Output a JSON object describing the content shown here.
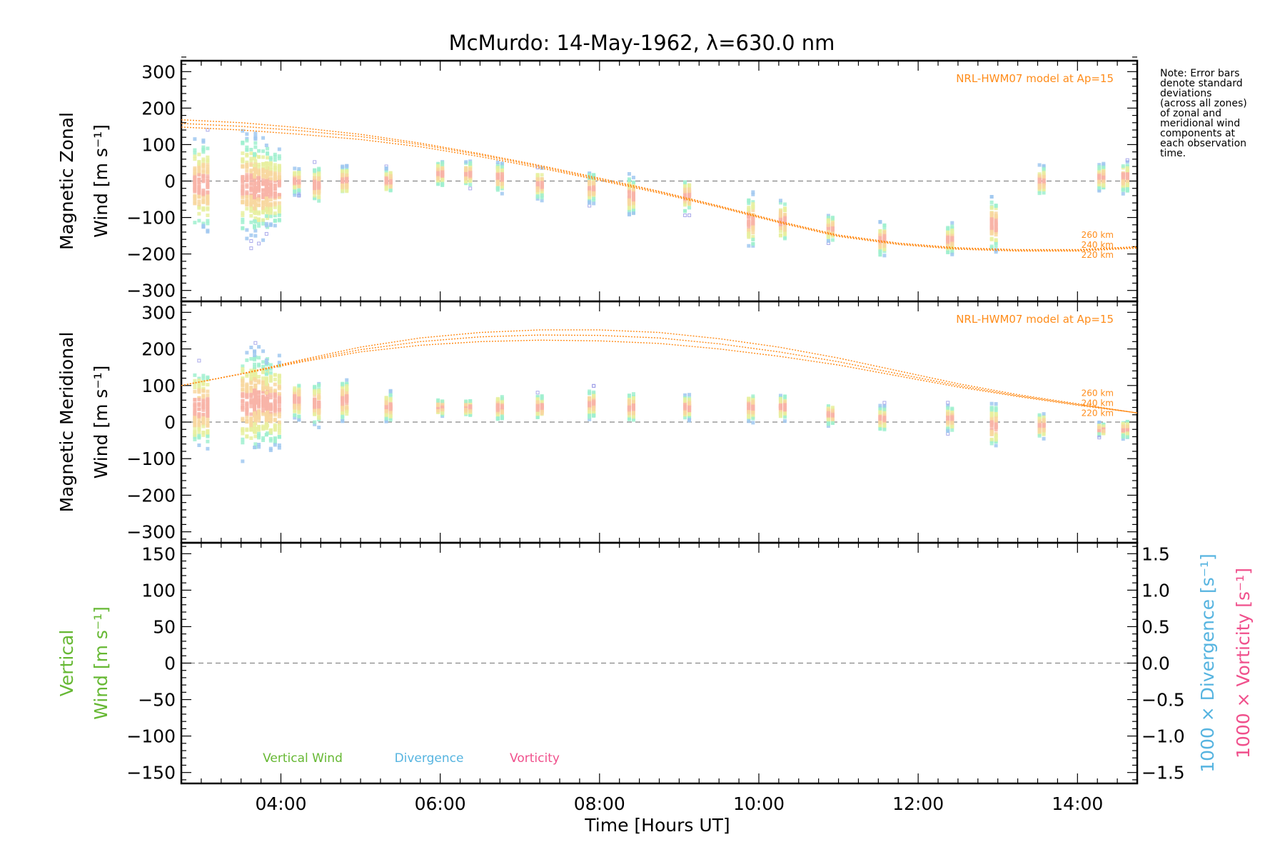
{
  "title": "McMurdo: 14-May-1962, λ=630.0 nm",
  "xlabel": "Time [Hours UT]",
  "note_lines": [
    "Note: Error bars",
    "denote standard",
    "deviations",
    "(across all zones)",
    "of zonal and",
    "meridional wind",
    "components at",
    "each observation",
    "time."
  ],
  "colors": {
    "model": "#ff8c1a",
    "vertical": "#66b833",
    "divergence": "#56b4e0",
    "vorticity": "#f0508c",
    "zero_line": "#888888",
    "sample_palette": [
      "#9a9ae6",
      "#a0c8f0",
      "#a0f0d0",
      "#e8f0a0",
      "#f8d8a0",
      "#f8b4a8"
    ]
  },
  "chart_data": [
    {
      "type": "scatter",
      "panel": "zonal",
      "ylabel_line1": "Magnetic Zonal",
      "ylabel_line2": "Wind [m s⁻¹]",
      "xlim": [
        2.75,
        14.75
      ],
      "ylim": [
        -330,
        330
      ],
      "yticks": [
        -300,
        -200,
        -100,
        0,
        100,
        200,
        300
      ],
      "xticks": [
        4,
        6,
        8,
        10,
        12,
        14
      ],
      "xticklabels": [
        "04:00",
        "06:00",
        "08:00",
        "10:00",
        "12:00",
        "14:00"
      ],
      "model_label": "NRL-HWM07 model at Ap=15",
      "model_heights": [
        "260 km",
        "240 km",
        "220 km"
      ],
      "model_series": [
        {
          "name": "260 km",
          "x": [
            2.75,
            3.5,
            4.25,
            5,
            5.75,
            6.5,
            7.25,
            8,
            8.75,
            9.5,
            10.25,
            11,
            11.75,
            12.5,
            13.25,
            14,
            14.75
          ],
          "y": [
            168,
            160,
            146,
            128,
            104,
            75,
            43,
            8,
            -28,
            -68,
            -110,
            -148,
            -170,
            -183,
            -188,
            -188,
            -180
          ]
        },
        {
          "name": "240 km",
          "x": [
            2.75,
            3.5,
            4.25,
            5,
            5.75,
            6.5,
            7.25,
            8,
            8.75,
            9.5,
            10.25,
            11,
            11.75,
            12.5,
            13.25,
            14,
            14.75
          ],
          "y": [
            158,
            150,
            138,
            122,
            100,
            72,
            40,
            5,
            -30,
            -70,
            -112,
            -150,
            -172,
            -185,
            -190,
            -190,
            -182
          ]
        },
        {
          "name": "220 km",
          "x": [
            2.75,
            3.5,
            4.25,
            5,
            5.75,
            6.5,
            7.25,
            8,
            8.75,
            9.5,
            10.25,
            11,
            11.75,
            12.5,
            13.25,
            14,
            14.75
          ],
          "y": [
            148,
            140,
            128,
            114,
            94,
            67,
            36,
            2,
            -33,
            -72,
            -114,
            -152,
            -174,
            -187,
            -192,
            -192,
            -184
          ]
        }
      ],
      "observations": [
        {
          "t": 3.0,
          "median": -10,
          "spread": 210
        },
        {
          "t": 3.6,
          "median": -10,
          "spread": 230
        },
        {
          "t": 3.75,
          "median": -20,
          "spread": 220
        },
        {
          "t": 3.9,
          "median": -20,
          "spread": 180
        },
        {
          "t": 4.2,
          "median": 0,
          "spread": 60
        },
        {
          "t": 4.45,
          "median": -10,
          "spread": 90
        },
        {
          "t": 4.8,
          "median": 0,
          "spread": 70
        },
        {
          "t": 5.35,
          "median": 0,
          "spread": 60
        },
        {
          "t": 6.0,
          "median": 20,
          "spread": 60
        },
        {
          "t": 6.35,
          "median": 20,
          "spread": 60
        },
        {
          "t": 6.75,
          "median": 10,
          "spread": 70
        },
        {
          "t": 7.25,
          "median": -10,
          "spread": 70
        },
        {
          "t": 7.9,
          "median": -20,
          "spread": 70
        },
        {
          "t": 8.4,
          "median": -40,
          "spread": 90
        },
        {
          "t": 9.1,
          "median": -40,
          "spread": 80
        },
        {
          "t": 9.9,
          "median": -110,
          "spread": 120
        },
        {
          "t": 10.3,
          "median": -110,
          "spread": 100
        },
        {
          "t": 10.9,
          "median": -130,
          "spread": 60
        },
        {
          "t": 11.55,
          "median": -160,
          "spread": 80
        },
        {
          "t": 12.4,
          "median": -160,
          "spread": 70
        },
        {
          "t": 12.95,
          "median": -120,
          "spread": 120
        },
        {
          "t": 13.55,
          "median": 0,
          "spread": 70
        },
        {
          "t": 14.3,
          "median": 10,
          "spread": 60
        },
        {
          "t": 14.6,
          "median": 10,
          "spread": 70
        }
      ]
    },
    {
      "type": "scatter",
      "panel": "meridional",
      "ylabel_line1": "Magnetic Meridional",
      "ylabel_line2": "Wind [m s⁻¹]",
      "xlim": [
        2.75,
        14.75
      ],
      "ylim": [
        -330,
        330
      ],
      "yticks": [
        -300,
        -200,
        -100,
        0,
        100,
        200,
        300
      ],
      "model_label": "NRL-HWM07 model at Ap=15",
      "model_heights": [
        "260 km",
        "240 km",
        "220 km"
      ],
      "model_series": [
        {
          "name": "260 km",
          "x": [
            2.75,
            3.5,
            4.25,
            5,
            5.75,
            6.5,
            7.25,
            8,
            8.75,
            9.5,
            10.25,
            11,
            11.75,
            12.5,
            13.25,
            14,
            14.75
          ],
          "y": [
            100,
            132,
            170,
            205,
            230,
            245,
            252,
            252,
            245,
            228,
            205,
            175,
            140,
            105,
            75,
            50,
            25
          ]
        },
        {
          "name": "240 km",
          "x": [
            2.75,
            3.5,
            4.25,
            5,
            5.75,
            6.5,
            7.25,
            8,
            8.75,
            9.5,
            10.25,
            11,
            11.75,
            12.5,
            13.25,
            14,
            14.75
          ],
          "y": [
            100,
            132,
            167,
            198,
            220,
            233,
            238,
            237,
            230,
            214,
            192,
            165,
            132,
            100,
            72,
            48,
            25
          ]
        },
        {
          "name": "220 km",
          "x": [
            2.75,
            3.5,
            4.25,
            5,
            5.75,
            6.5,
            7.25,
            8,
            8.75,
            9.5,
            10.25,
            11,
            11.75,
            12.5,
            13.25,
            14,
            14.75
          ],
          "y": [
            100,
            131,
            164,
            192,
            210,
            220,
            224,
            222,
            215,
            200,
            180,
            156,
            126,
            96,
            70,
            46,
            25
          ]
        }
      ],
      "observations": [
        {
          "t": 3.0,
          "median": 40,
          "spread": 190
        },
        {
          "t": 3.6,
          "median": 50,
          "spread": 240
        },
        {
          "t": 3.75,
          "median": 60,
          "spread": 220
        },
        {
          "t": 3.9,
          "median": 50,
          "spread": 200
        },
        {
          "t": 4.2,
          "median": 60,
          "spread": 90
        },
        {
          "t": 4.45,
          "median": 50,
          "spread": 100
        },
        {
          "t": 4.8,
          "median": 60,
          "spread": 100
        },
        {
          "t": 5.35,
          "median": 40,
          "spread": 70
        },
        {
          "t": 6.0,
          "median": 40,
          "spread": 40
        },
        {
          "t": 6.35,
          "median": 40,
          "spread": 40
        },
        {
          "t": 6.75,
          "median": 40,
          "spread": 60
        },
        {
          "t": 7.25,
          "median": 40,
          "spread": 60
        },
        {
          "t": 7.9,
          "median": 50,
          "spread": 70
        },
        {
          "t": 8.4,
          "median": 40,
          "spread": 70
        },
        {
          "t": 9.1,
          "median": 40,
          "spread": 60
        },
        {
          "t": 9.9,
          "median": 40,
          "spread": 70
        },
        {
          "t": 10.3,
          "median": 40,
          "spread": 60
        },
        {
          "t": 10.9,
          "median": 20,
          "spread": 50
        },
        {
          "t": 11.55,
          "median": 10,
          "spread": 60
        },
        {
          "t": 12.4,
          "median": 10,
          "spread": 60
        },
        {
          "t": 12.95,
          "median": -10,
          "spread": 100
        },
        {
          "t": 13.55,
          "median": -10,
          "spread": 60
        },
        {
          "t": 14.3,
          "median": -20,
          "spread": 30
        },
        {
          "t": 14.6,
          "median": -20,
          "spread": 40
        }
      ]
    },
    {
      "type": "line",
      "panel": "vertical",
      "ylabel_line1": "Vertical",
      "ylabel_line2": "Wind [m s⁻¹]",
      "right_label_1": "1000 × Divergence [s⁻¹]",
      "right_label_2": "1000 × Vorticity [s⁻¹]",
      "xlim": [
        2.75,
        14.75
      ],
      "ylim": [
        -165,
        165
      ],
      "yticks": [
        -150,
        -100,
        -50,
        0,
        50,
        100,
        150
      ],
      "y2lim": [
        -1.65,
        1.65
      ],
      "y2ticks": [
        -1.5,
        -1.0,
        -0.5,
        0.0,
        0.5,
        1.0,
        1.5
      ],
      "y2ticklabels": [
        "−1.5",
        "−1.0",
        "−0.5",
        "0.0",
        "0.5",
        "1.0",
        "1.5"
      ],
      "legend": [
        "Vertical Wind",
        "Divergence",
        "Vorticity"
      ],
      "series": []
    }
  ]
}
